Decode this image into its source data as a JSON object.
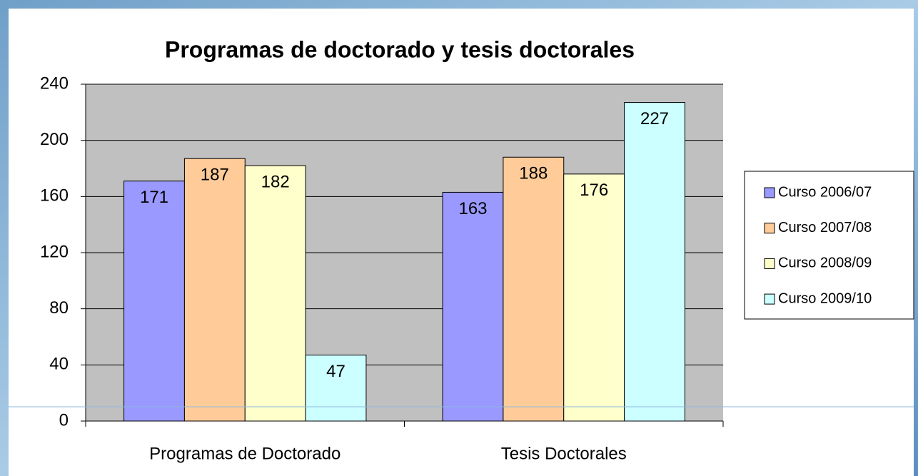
{
  "chart_data": {
    "type": "bar",
    "title": "Programas de doctorado y tesis doctorales",
    "categories": [
      "Programas de Doctorado",
      "Tesis Doctorales"
    ],
    "series": [
      {
        "name": "Curso 2006/07",
        "color": "#9999ff",
        "values": [
          171,
          163
        ]
      },
      {
        "name": "Curso 2007/08",
        "color": "#ffcc99",
        "values": [
          187,
          188
        ]
      },
      {
        "name": "Curso 2008/09",
        "color": "#ffffcc",
        "values": [
          182,
          176
        ]
      },
      {
        "name": "Curso 2009/10",
        "color": "#ccffff",
        "values": [
          47,
          227
        ]
      }
    ],
    "ylim": [
      0,
      240
    ],
    "yticks": [
      0,
      40,
      80,
      120,
      160,
      200,
      240
    ],
    "grid": true,
    "legend": "right"
  }
}
